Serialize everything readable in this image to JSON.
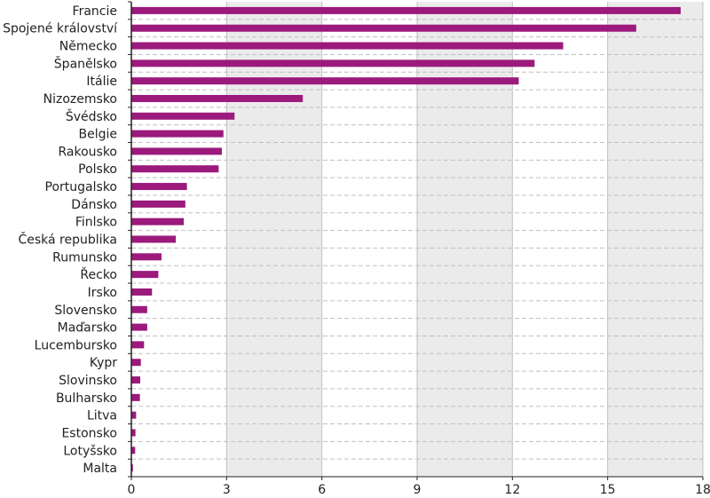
{
  "chart_data": {
    "type": "bar",
    "orientation": "horizontal",
    "categories": [
      "Francie",
      "Spojené království",
      "Německo",
      "Španělsko",
      "Itálie",
      "Nizozemsko",
      "Švédsko",
      "Belgie",
      "Rakousko",
      "Polsko",
      "Portugalsko",
      "Dánsko",
      "Finlsko",
      "Česká republika",
      "Rumunsko",
      "Řecko",
      "Irsko",
      "Slovensko",
      "Maďarsko",
      "Lucembursko",
      "Kypr",
      "Slovinsko",
      "Bulharsko",
      "Litva",
      "Estonsko",
      "Lotyšsko",
      "Malta"
    ],
    "values": [
      17.3,
      15.9,
      13.6,
      12.7,
      12.2,
      5.4,
      3.25,
      2.9,
      2.85,
      2.75,
      1.75,
      1.7,
      1.65,
      1.4,
      0.95,
      0.85,
      0.65,
      0.5,
      0.5,
      0.4,
      0.3,
      0.28,
      0.27,
      0.15,
      0.13,
      0.12,
      0.05
    ],
    "xlim": [
      0,
      18
    ],
    "xticks": [
      "0",
      "3",
      "6",
      "9",
      "12",
      "15",
      "18"
    ],
    "grid": "vertical lines, alternating shaded bands, dashed row separators",
    "colors": {
      "bar": "#9b1a7c",
      "band": "#ebebeb",
      "grid": "#c0c0c0",
      "axis": "#222222"
    },
    "title": "",
    "xlabel": "",
    "ylabel": ""
  }
}
